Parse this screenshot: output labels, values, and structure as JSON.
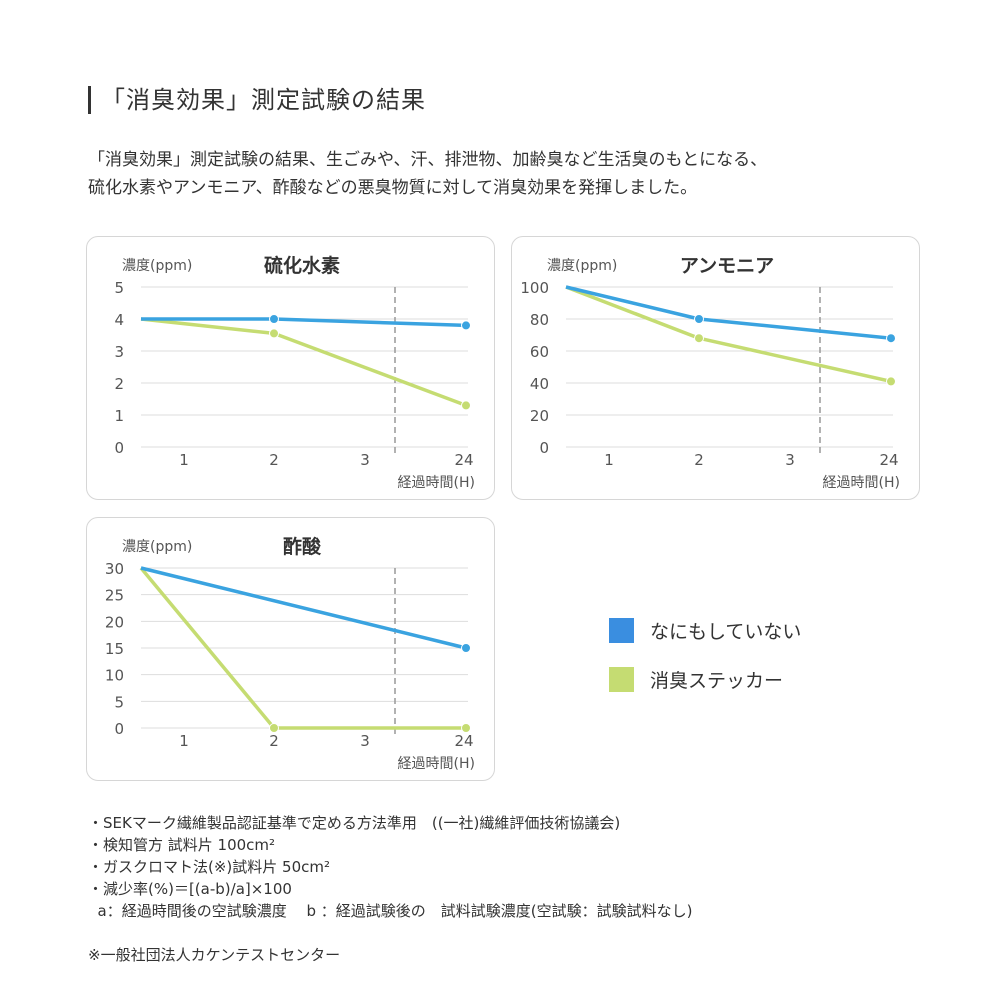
{
  "heading": "「消臭効果」測定試験の結果",
  "intro": [
    "「消臭効果」測定試験の結果、生ごみや、汗、排泄物、加齢臭など生活臭のもとになる、",
    "硫化水素やアンモニア、酢酸などの悪臭物質に対して消臭効果を発揮しました。"
  ],
  "colors": {
    "none": "#3aa3e0",
    "sticker": "#c5dc72",
    "legend_none": "#3a8ee0"
  },
  "legend": [
    {
      "label": "なにもしていない",
      "color": "#3a8ee0"
    },
    {
      "label": "消臭ステッカー",
      "color": "#c5dc72"
    }
  ],
  "chart_data": [
    {
      "type": "line",
      "title": "硫化水素",
      "ylabel": "濃度(ppm)",
      "xlabel": "経過時間(H)",
      "ylim": [
        0,
        5
      ],
      "yticks": [
        "0",
        "1",
        "2",
        "3",
        "4",
        "5"
      ],
      "xticks": [
        "1",
        "2",
        "3",
        "24"
      ],
      "x": [
        "start",
        "2",
        "24"
      ],
      "series": [
        {
          "key": "none",
          "values": [
            4,
            4,
            3.8
          ]
        },
        {
          "key": "sticker",
          "values": [
            4,
            3.55,
            1.3
          ]
        }
      ]
    },
    {
      "type": "line",
      "title": "アンモニア",
      "ylabel": "濃度(ppm)",
      "xlabel": "経過時間(H)",
      "ylim": [
        0,
        100
      ],
      "yticks": [
        "0",
        "20",
        "40",
        "60",
        "80",
        "100"
      ],
      "xticks": [
        "1",
        "2",
        "3",
        "24"
      ],
      "x": [
        "start",
        "2",
        "24"
      ],
      "series": [
        {
          "key": "none",
          "values": [
            100,
            80,
            68
          ]
        },
        {
          "key": "sticker",
          "values": [
            100,
            68,
            41
          ]
        }
      ]
    },
    {
      "type": "line",
      "title": "酢酸",
      "ylabel": "濃度(ppm)",
      "xlabel": "経過時間(H)",
      "ylim": [
        0,
        30
      ],
      "yticks": [
        "0",
        "5",
        "10",
        "15",
        "20",
        "25",
        "30"
      ],
      "xticks": [
        "1",
        "2",
        "3",
        "24"
      ],
      "x": [
        "start",
        "2",
        "24"
      ],
      "series": [
        {
          "key": "none",
          "values": [
            30,
            null,
            15
          ]
        },
        {
          "key": "sticker",
          "values": [
            30,
            0,
            0
          ]
        }
      ]
    }
  ],
  "notes": [
    "・SEKマーク繊維製品認証基準で定める方法準用　((一社)繊維評価技術協議会)",
    "・検知管方 試料片 100cm²",
    "・ガスクロマト法(※)試料片 50cm²",
    "・減少率(%)＝[(a-b)/a]×100",
    "  a：経過時間後の空試験濃度　 b ：経過試験後の　試料試験濃度(空試験：試験試料なし)",
    "",
    "※一般社団法人カケンテストセンター"
  ]
}
